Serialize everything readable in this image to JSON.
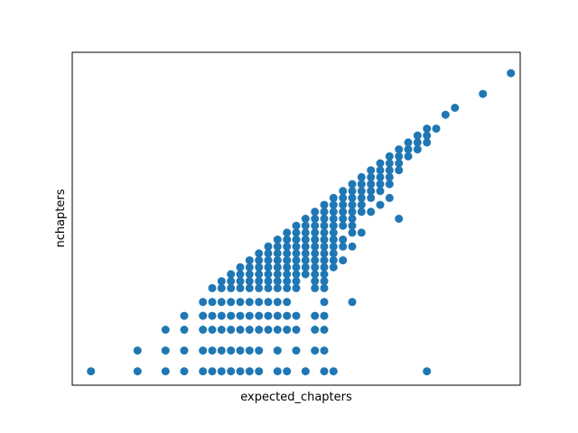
{
  "chart_data": {
    "type": "scatter",
    "title": "",
    "xlabel": "expected_chapters",
    "ylabel": "nchapters",
    "xlim": [
      0,
      48
    ],
    "ylim": [
      0,
      48
    ],
    "x_ticks_shown": false,
    "y_ticks_shown": false,
    "grid": false,
    "legend": "none",
    "marker_color": "#1f77b4",
    "series": [
      {
        "points": [
          [
            2,
            2
          ],
          [
            7,
            2
          ],
          [
            10,
            2
          ],
          [
            12,
            2
          ],
          [
            14,
            2
          ],
          [
            15,
            2
          ],
          [
            16,
            2
          ],
          [
            17,
            2
          ],
          [
            18,
            2
          ],
          [
            19,
            2
          ],
          [
            20,
            2
          ],
          [
            22,
            2
          ],
          [
            23,
            2
          ],
          [
            25,
            2
          ],
          [
            27,
            2
          ],
          [
            28,
            2
          ],
          [
            38,
            2
          ],
          [
            7,
            5
          ],
          [
            10,
            5
          ],
          [
            12,
            5
          ],
          [
            14,
            5
          ],
          [
            15,
            5
          ],
          [
            16,
            5
          ],
          [
            17,
            5
          ],
          [
            18,
            5
          ],
          [
            19,
            5
          ],
          [
            20,
            5
          ],
          [
            22,
            5
          ],
          [
            24,
            5
          ],
          [
            26,
            5
          ],
          [
            27,
            5
          ],
          [
            10,
            8
          ],
          [
            12,
            8
          ],
          [
            14,
            8
          ],
          [
            15,
            8
          ],
          [
            16,
            8
          ],
          [
            17,
            8
          ],
          [
            18,
            8
          ],
          [
            19,
            8
          ],
          [
            20,
            8
          ],
          [
            21,
            8
          ],
          [
            22,
            8
          ],
          [
            23,
            8
          ],
          [
            24,
            8
          ],
          [
            26,
            8
          ],
          [
            27,
            8
          ],
          [
            12,
            10
          ],
          [
            14,
            10
          ],
          [
            15,
            10
          ],
          [
            16,
            10
          ],
          [
            17,
            10
          ],
          [
            18,
            10
          ],
          [
            19,
            10
          ],
          [
            20,
            10
          ],
          [
            21,
            10
          ],
          [
            22,
            10
          ],
          [
            23,
            10
          ],
          [
            24,
            10
          ],
          [
            26,
            10
          ],
          [
            27,
            10
          ],
          [
            14,
            12
          ],
          [
            15,
            12
          ],
          [
            16,
            12
          ],
          [
            17,
            12
          ],
          [
            18,
            12
          ],
          [
            19,
            12
          ],
          [
            20,
            12
          ],
          [
            21,
            12
          ],
          [
            22,
            12
          ],
          [
            23,
            12
          ],
          [
            27,
            12
          ],
          [
            30,
            12
          ],
          [
            15,
            14
          ],
          [
            16,
            14
          ],
          [
            17,
            14
          ],
          [
            18,
            14
          ],
          [
            19,
            14
          ],
          [
            20,
            14
          ],
          [
            21,
            14
          ],
          [
            22,
            14
          ],
          [
            23,
            14
          ],
          [
            24,
            14
          ],
          [
            26,
            14
          ],
          [
            27,
            14
          ],
          [
            16,
            15
          ],
          [
            17,
            15
          ],
          [
            18,
            15
          ],
          [
            19,
            15
          ],
          [
            20,
            15
          ],
          [
            21,
            15
          ],
          [
            22,
            15
          ],
          [
            23,
            15
          ],
          [
            24,
            15
          ],
          [
            26,
            15
          ],
          [
            27,
            15
          ],
          [
            17,
            16
          ],
          [
            18,
            16
          ],
          [
            19,
            16
          ],
          [
            20,
            16
          ],
          [
            21,
            16
          ],
          [
            22,
            16
          ],
          [
            23,
            16
          ],
          [
            24,
            16
          ],
          [
            25,
            16
          ],
          [
            26,
            16
          ],
          [
            27,
            16
          ],
          [
            18,
            17
          ],
          [
            19,
            17
          ],
          [
            20,
            17
          ],
          [
            21,
            17
          ],
          [
            22,
            17
          ],
          [
            23,
            17
          ],
          [
            24,
            17
          ],
          [
            25,
            17
          ],
          [
            26,
            17
          ],
          [
            27,
            17
          ],
          [
            28,
            17
          ],
          [
            19,
            18
          ],
          [
            20,
            18
          ],
          [
            21,
            18
          ],
          [
            22,
            18
          ],
          [
            23,
            18
          ],
          [
            24,
            18
          ],
          [
            25,
            18
          ],
          [
            26,
            18
          ],
          [
            27,
            18
          ],
          [
            28,
            18
          ],
          [
            29,
            18
          ],
          [
            20,
            19
          ],
          [
            21,
            19
          ],
          [
            22,
            19
          ],
          [
            23,
            19
          ],
          [
            24,
            19
          ],
          [
            25,
            19
          ],
          [
            26,
            19
          ],
          [
            27,
            19
          ],
          [
            28,
            19
          ],
          [
            21,
            20
          ],
          [
            22,
            20
          ],
          [
            23,
            20
          ],
          [
            24,
            20
          ],
          [
            25,
            20
          ],
          [
            26,
            20
          ],
          [
            27,
            20
          ],
          [
            28,
            20
          ],
          [
            29,
            20
          ],
          [
            30,
            20
          ],
          [
            22,
            21
          ],
          [
            23,
            21
          ],
          [
            24,
            21
          ],
          [
            25,
            21
          ],
          [
            26,
            21
          ],
          [
            27,
            21
          ],
          [
            28,
            21
          ],
          [
            29,
            21
          ],
          [
            23,
            22
          ],
          [
            24,
            22
          ],
          [
            25,
            22
          ],
          [
            26,
            22
          ],
          [
            27,
            22
          ],
          [
            28,
            22
          ],
          [
            30,
            22
          ],
          [
            31,
            22
          ],
          [
            24,
            23
          ],
          [
            25,
            23
          ],
          [
            26,
            23
          ],
          [
            27,
            23
          ],
          [
            28,
            23
          ],
          [
            29,
            23
          ],
          [
            30,
            23
          ],
          [
            25,
            24
          ],
          [
            26,
            24
          ],
          [
            27,
            24
          ],
          [
            28,
            24
          ],
          [
            29,
            24
          ],
          [
            30,
            24
          ],
          [
            35,
            24
          ],
          [
            26,
            25
          ],
          [
            27,
            25
          ],
          [
            28,
            25
          ],
          [
            29,
            25
          ],
          [
            30,
            25
          ],
          [
            31,
            25
          ],
          [
            32,
            25
          ],
          [
            27,
            26
          ],
          [
            28,
            26
          ],
          [
            29,
            26
          ],
          [
            30,
            26
          ],
          [
            31,
            26
          ],
          [
            33,
            26
          ],
          [
            28,
            27
          ],
          [
            29,
            27
          ],
          [
            30,
            27
          ],
          [
            31,
            27
          ],
          [
            32,
            27
          ],
          [
            34,
            27
          ],
          [
            29,
            28
          ],
          [
            30,
            28
          ],
          [
            31,
            28
          ],
          [
            32,
            28
          ],
          [
            33,
            28
          ],
          [
            30,
            29
          ],
          [
            31,
            29
          ],
          [
            32,
            29
          ],
          [
            33,
            29
          ],
          [
            34,
            29
          ],
          [
            31,
            30
          ],
          [
            32,
            30
          ],
          [
            33,
            30
          ],
          [
            34,
            30
          ],
          [
            32,
            31
          ],
          [
            33,
            31
          ],
          [
            34,
            31
          ],
          [
            35,
            31
          ],
          [
            33,
            32
          ],
          [
            34,
            32
          ],
          [
            35,
            32
          ],
          [
            34,
            33
          ],
          [
            35,
            33
          ],
          [
            36,
            33
          ],
          [
            35,
            34
          ],
          [
            36,
            34
          ],
          [
            37,
            34
          ],
          [
            36,
            35
          ],
          [
            37,
            35
          ],
          [
            38,
            35
          ],
          [
            37,
            36
          ],
          [
            38,
            36
          ],
          [
            38,
            37
          ],
          [
            39,
            37
          ],
          [
            40,
            39
          ],
          [
            41,
            40
          ],
          [
            44,
            42
          ],
          [
            47,
            45
          ]
        ]
      }
    ]
  }
}
